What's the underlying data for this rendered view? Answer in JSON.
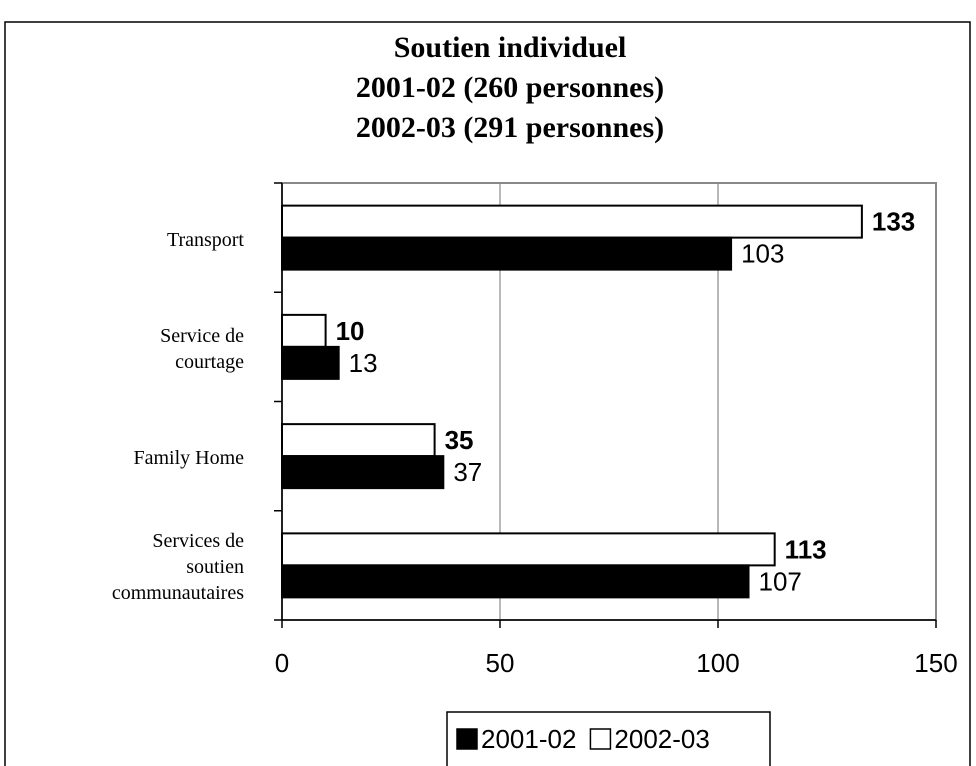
{
  "chart_data": {
    "type": "bar",
    "orientation": "horizontal",
    "title": [
      "Soutien individuel",
      "2001-02 (260 personnes)",
      "2002-03 (291 personnes)"
    ],
    "categories": [
      "Transport",
      "Service de courtage",
      "Family Home",
      "Services de soutien communautaires"
    ],
    "series": [
      {
        "name": "2001-02",
        "color": "#000000",
        "values": [
          103,
          13,
          37,
          107
        ]
      },
      {
        "name": "2002-03",
        "color": "#ffffff",
        "values": [
          133,
          10,
          35,
          113
        ]
      }
    ],
    "xlim": [
      0,
      150
    ],
    "xticks": [
      0,
      50,
      100,
      150
    ],
    "grid": true,
    "legend": "bottom"
  }
}
